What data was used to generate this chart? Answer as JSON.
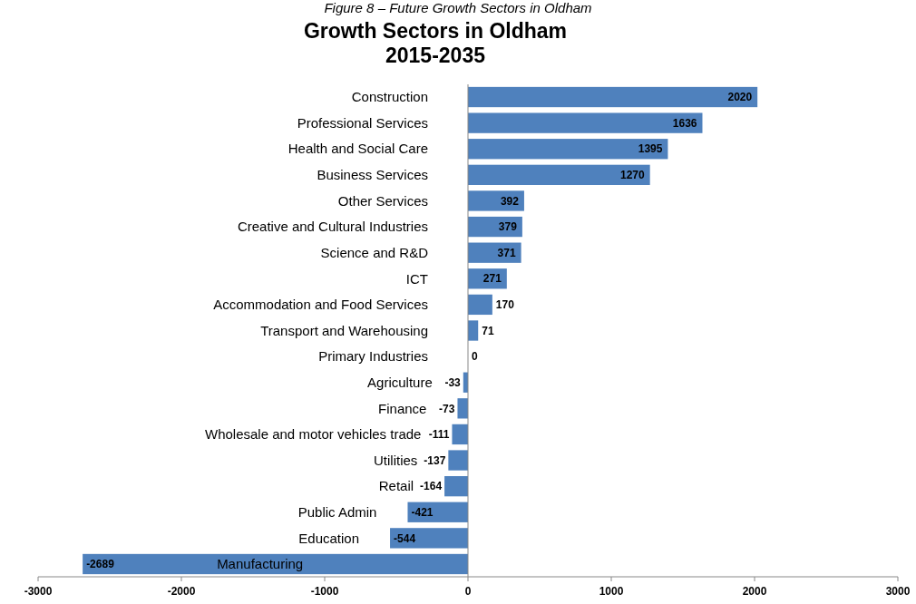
{
  "chart_data": {
    "type": "bar",
    "orientation": "horizontal",
    "title": "Growth Sectors in Oldham\n2015-2035",
    "annotations": [
      "Figure 8 – Future Growth Sectors in Oldham"
    ],
    "categories": [
      "Construction",
      "Professional Services",
      "Health and Social Care",
      "Business Services",
      "Other Services",
      "Creative and Cultural Industries",
      "Science and R&D",
      "ICT",
      "Accommodation and Food Services",
      "Transport and Warehousing",
      "Primary Industries",
      "Agriculture",
      "Finance",
      "Wholesale and motor vehicles trade",
      "Utilities",
      "Retail",
      "Public Admin",
      "Education",
      "Manufacturing"
    ],
    "values": [
      2020,
      1636,
      1395,
      1270,
      392,
      379,
      371,
      271,
      170,
      71,
      0,
      -33,
      -73,
      -111,
      -137,
      -164,
      -421,
      -544,
      -2689
    ],
    "color": "#4f81bd",
    "xlim": [
      -3000,
      3000
    ],
    "xticks": [
      -3000,
      -2000,
      -1000,
      0,
      1000,
      2000,
      3000
    ],
    "data_labels": true
  }
}
